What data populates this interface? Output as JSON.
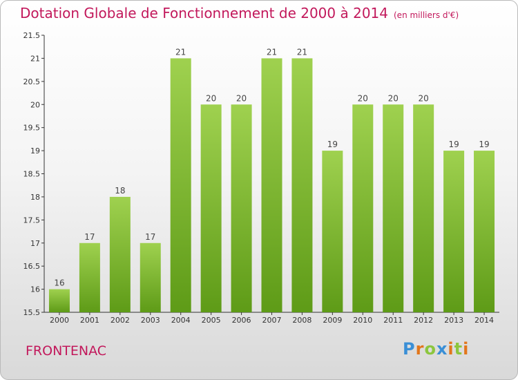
{
  "title": "Dotation Globale de Fonctionnement de 2000 à 2014",
  "unit_note": "(en milliers d'€)",
  "commune": "FRONTENAC",
  "logo": {
    "letters": [
      "P",
      "r",
      "o",
      "x",
      "i",
      "t",
      "i"
    ],
    "colors": [
      "#3a8fd6",
      "#e2761b",
      "#8cc63e",
      "#3a8fd6",
      "#e2761b",
      "#8cc63e",
      "#e2761b"
    ]
  },
  "colors": {
    "bar_top": "#9fd14f",
    "bar_bottom": "#5e9b17",
    "title": "#c2185b"
  },
  "chart_data": {
    "type": "bar",
    "title": "Dotation Globale de Fonctionnement de 2000 à 2014",
    "categories": [
      "2000",
      "2001",
      "2002",
      "2003",
      "2004",
      "2005",
      "2006",
      "2007",
      "2008",
      "2009",
      "2010",
      "2011",
      "2012",
      "2013",
      "2014"
    ],
    "values": [
      16,
      17,
      18,
      17,
      21,
      20,
      20,
      21,
      21,
      19,
      20,
      20,
      20,
      19,
      19
    ],
    "data_labels": [
      "16",
      "17",
      "18",
      "17",
      "21",
      "20",
      "20",
      "21",
      "21",
      "19",
      "20",
      "20",
      "20",
      "19",
      "19"
    ],
    "ylim": [
      15.5,
      21.5
    ],
    "yticks": [
      "15.5",
      "16",
      "16.5",
      "17",
      "17.5",
      "18",
      "18.5",
      "19",
      "19.5",
      "20",
      "20.5",
      "21",
      "21.5"
    ],
    "grid": false
  }
}
